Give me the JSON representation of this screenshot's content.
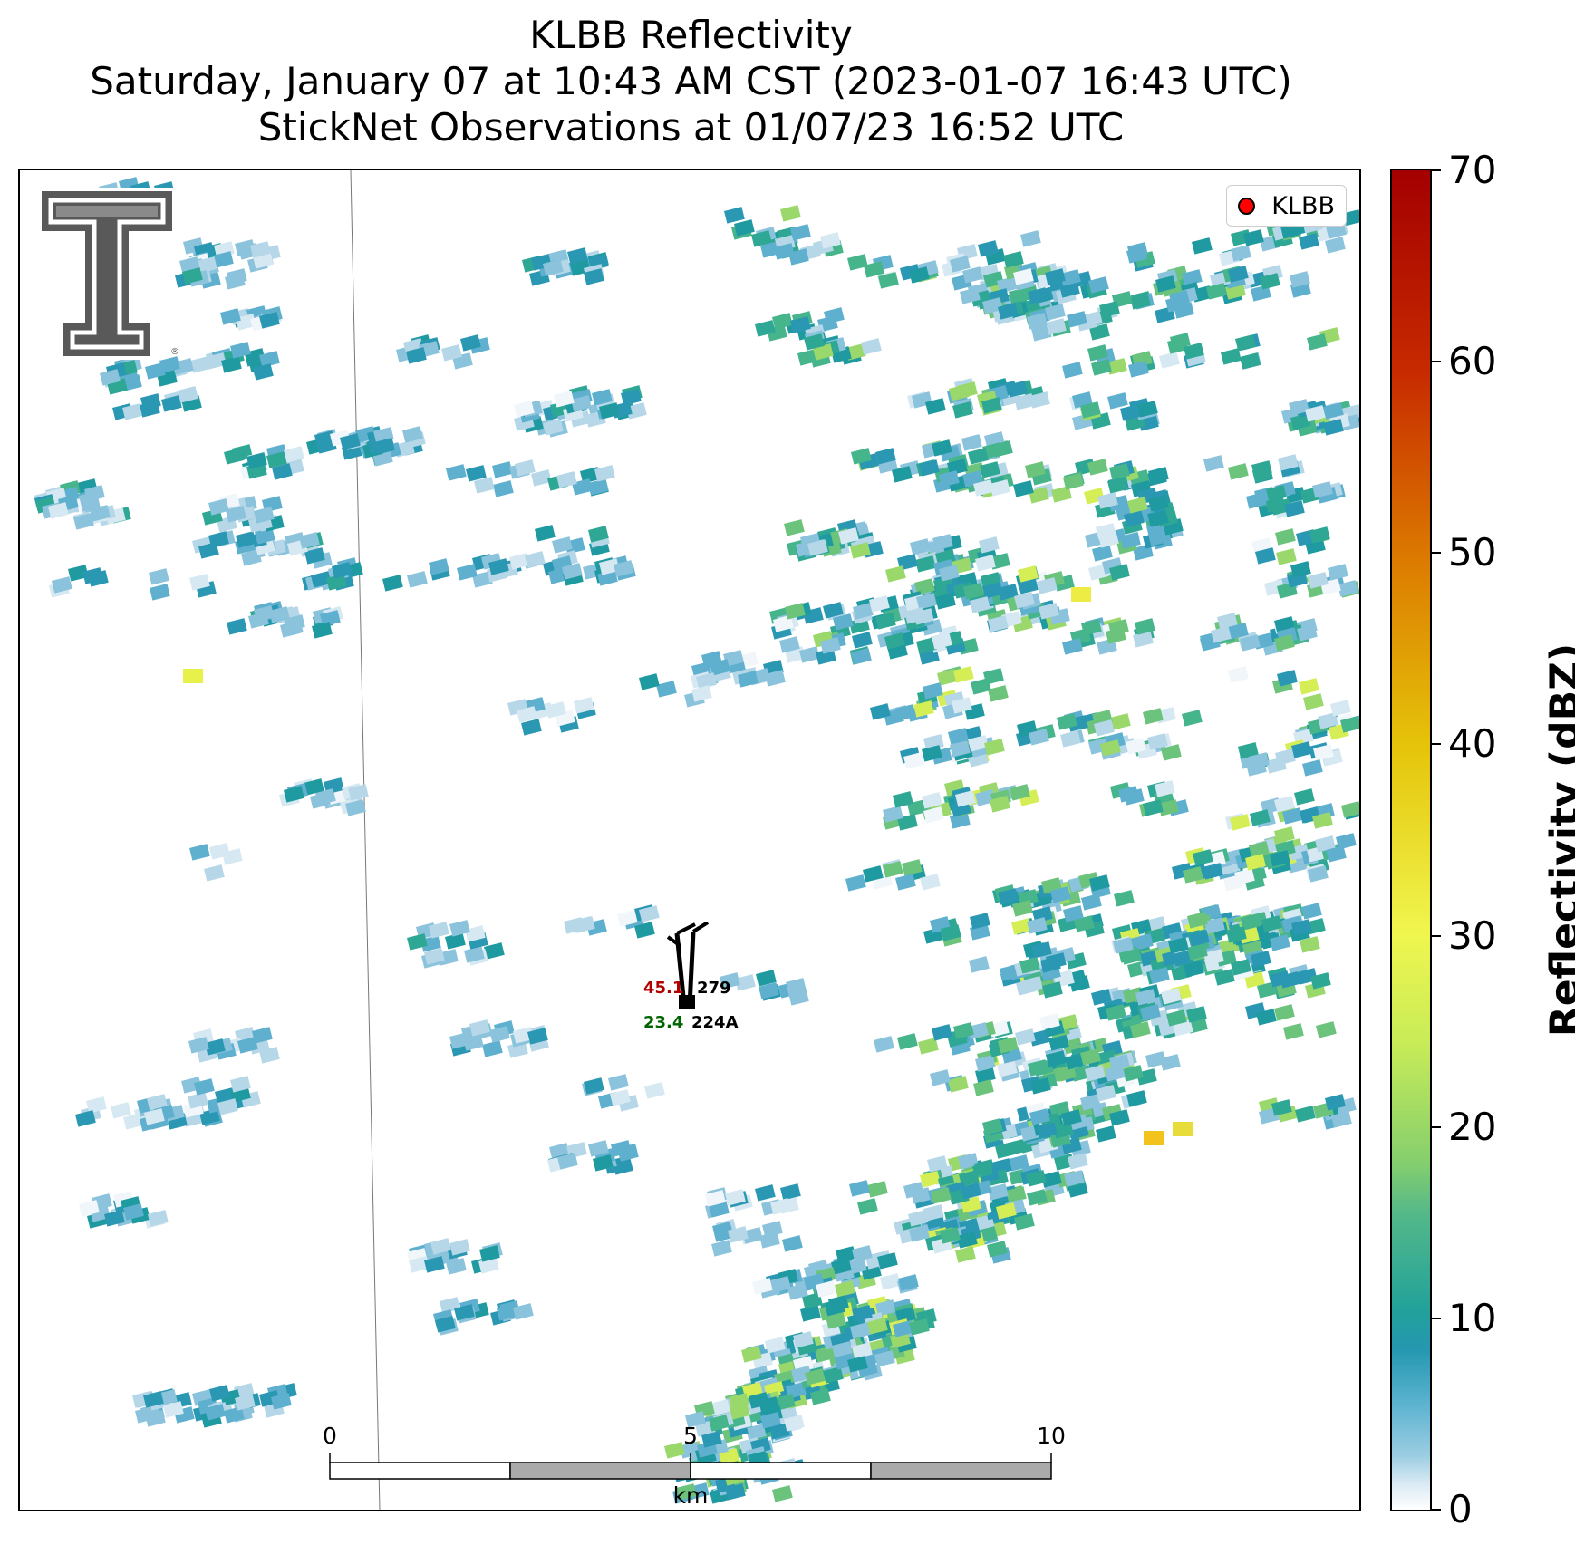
{
  "title": {
    "line1": "KLBB Reflectivity",
    "line2": "Saturday, January 07 at 10:43 AM CST (2023-01-07 16:43 UTC)",
    "line3": "StickNet Observations at 01/07/23 16:52 UTC"
  },
  "legend": {
    "label": "KLBB",
    "marker_color": "#ff0000"
  },
  "logo": {
    "name": "Texas Tech Double T",
    "color": "#595959"
  },
  "scale_bar": {
    "labels": [
      "0",
      "5",
      "10"
    ],
    "unit": "km"
  },
  "colorbar": {
    "title": "Reflectivity (dBZ)",
    "ticks": [
      "0",
      "10",
      "20",
      "30",
      "40",
      "50",
      "60",
      "70"
    ],
    "vmin": 0,
    "vmax": 70
  },
  "stations": [
    {
      "id": "279",
      "temperature": "45.1",
      "temperature_color": "#b00000",
      "dewpoint": "",
      "wind_barb": "north"
    },
    {
      "id": "224A",
      "temperature": "",
      "dewpoint": "23.4",
      "dewpoint_color": "#006400",
      "wind_barb": "north"
    }
  ]
}
